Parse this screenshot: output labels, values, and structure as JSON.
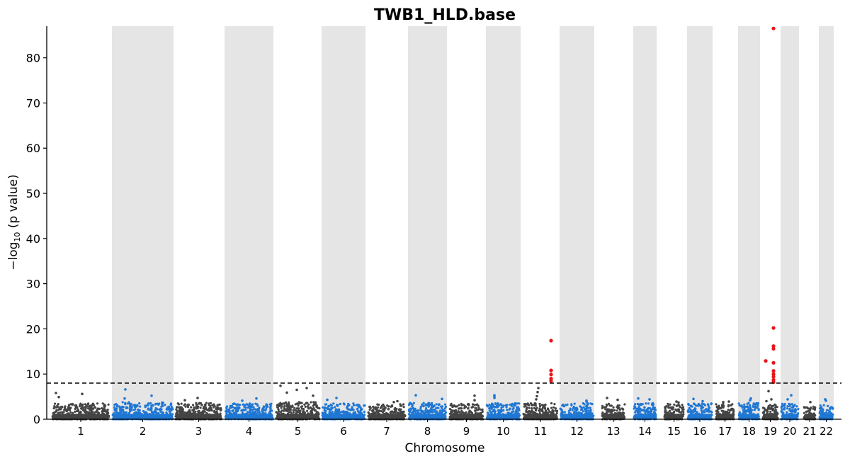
{
  "chart_data": {
    "type": "scatter",
    "title": "TWB1_HLD.base",
    "xlabel": "Chromosome",
    "ylabel": "−log10 (p value)",
    "ylabel_parts": {
      "prefix": "−log",
      "subscript": "10",
      "suffix": " (p value)"
    },
    "ylim": [
      0,
      87
    ],
    "yticks": [
      0,
      10,
      20,
      30,
      40,
      50,
      60,
      70,
      80
    ],
    "threshold": 8,
    "threshold_style": "dashed",
    "grid": false,
    "legend": "none",
    "colors": {
      "odd_chromosome": "#444444",
      "even_chromosome": "#1f77d4",
      "significant": "#e8141a",
      "shading": "#e5e5e5",
      "threshold_line": "#000000"
    },
    "chromosomes": [
      {
        "label": "1",
        "span": [
          73,
          155
        ],
        "shaded": false,
        "color_group": "dark",
        "base_max": 3.5,
        "peak_values": [
          5.8,
          5.6,
          4.9
        ]
      },
      {
        "label": "2",
        "span": [
          158,
          245
        ],
        "shaded": true,
        "color_group": "blue",
        "base_max": 3.8,
        "peak_values": [
          6.6,
          5.2,
          4.6
        ]
      },
      {
        "label": "3",
        "span": [
          247,
          314
        ],
        "shaded": false,
        "color_group": "dark",
        "base_max": 3.6,
        "peak_values": [
          4.7,
          4.2
        ]
      },
      {
        "label": "4",
        "span": [
          317,
          386
        ],
        "shaded": true,
        "color_group": "blue",
        "base_max": 3.5,
        "peak_values": [
          4.6,
          4.1
        ]
      },
      {
        "label": "5",
        "span": [
          389,
          452
        ],
        "shaded": false,
        "color_group": "dark",
        "base_max": 3.8,
        "peak_values": [
          7.4,
          6.9,
          6.5,
          5.9,
          5.2
        ]
      },
      {
        "label": "6",
        "span": [
          454,
          516
        ],
        "shaded": true,
        "color_group": "blue",
        "base_max": 3.5,
        "peak_values": [
          4.7,
          4.3
        ]
      },
      {
        "label": "7",
        "span": [
          519,
          573
        ],
        "shaded": false,
        "color_group": "dark",
        "base_max": 3.4,
        "peak_values": [
          4.0,
          3.8
        ]
      },
      {
        "label": "8",
        "span": [
          576,
          631
        ],
        "shaded": true,
        "color_group": "blue",
        "base_max": 3.6,
        "peak_values": [
          5.3,
          4.5
        ]
      },
      {
        "label": "9",
        "span": [
          634,
          683
        ],
        "shaded": false,
        "color_group": "dark",
        "base_max": 3.4,
        "peak_values": [
          5.2,
          4.2
        ]
      },
      {
        "label": "10",
        "span": [
          686,
          735
        ],
        "shaded": true,
        "color_group": "blue",
        "base_max": 3.6,
        "peak_values": [
          5.3,
          5.0,
          4.7
        ]
      },
      {
        "label": "11",
        "span": [
          738,
          788
        ],
        "shaded": false,
        "color_group": "dark",
        "base_max": 3.6,
        "peak_values": [
          6.9,
          6.0,
          5.1,
          4.4
        ],
        "significant": [
          {
            "x": 778,
            "y": 17.4
          },
          {
            "x": 778,
            "y": 10.8
          },
          {
            "x": 778,
            "y": 9.9
          },
          {
            "x": 778,
            "y": 9.0
          },
          {
            "x": 778,
            "y": 8.5
          }
        ]
      },
      {
        "label": "12",
        "span": [
          790,
          839
        ],
        "shaded": true,
        "color_group": "blue",
        "base_max": 3.6,
        "peak_values": [
          4.1,
          3.9
        ]
      },
      {
        "label": "13",
        "span": [
          849,
          883
        ],
        "shaded": false,
        "color_group": "dark",
        "base_max": 3.4,
        "peak_values": [
          4.7,
          4.3
        ]
      },
      {
        "label": "14",
        "span": [
          894,
          927
        ],
        "shaded": true,
        "color_group": "blue",
        "base_max": 3.6,
        "peak_values": [
          4.6,
          4.4
        ]
      },
      {
        "label": "15",
        "span": [
          937,
          966
        ],
        "shaded": false,
        "color_group": "dark",
        "base_max": 3.4,
        "peak_values": [
          3.9,
          3.7
        ]
      },
      {
        "label": "16",
        "span": [
          970,
          1006
        ],
        "shaded": true,
        "color_group": "blue",
        "base_max": 3.5,
        "peak_values": [
          4.5,
          4.0
        ]
      },
      {
        "label": "17",
        "span": [
          1010,
          1037
        ],
        "shaded": false,
        "color_group": "dark",
        "base_max": 3.5,
        "peak_values": [
          3.9,
          3.8
        ]
      },
      {
        "label": "18",
        "span": [
          1042,
          1073
        ],
        "shaded": true,
        "color_group": "blue",
        "base_max": 3.6,
        "peak_values": [
          4.6,
          4.2
        ]
      },
      {
        "label": "19",
        "span": [
          1076,
          1099
        ],
        "shaded": false,
        "color_group": "dark",
        "base_max": 3.3,
        "peak_values": [
          6.2,
          4.4,
          4.0
        ],
        "significant": [
          {
            "x": 1092,
            "y": 86.5
          },
          {
            "x": 1092,
            "y": 20.2
          },
          {
            "x": 1092,
            "y": 16.2
          },
          {
            "x": 1092,
            "y": 15.6
          },
          {
            "x": 1081,
            "y": 12.9
          },
          {
            "x": 1092,
            "y": 12.5
          },
          {
            "x": 1092,
            "y": 10.7
          },
          {
            "x": 1092,
            "y": 10.0
          },
          {
            "x": 1092,
            "y": 9.4
          },
          {
            "x": 1092,
            "y": 8.7
          },
          {
            "x": 1092,
            "y": 8.2
          }
        ]
      },
      {
        "label": "20",
        "span": [
          1102,
          1128
        ],
        "shaded": true,
        "color_group": "blue",
        "base_max": 3.5,
        "peak_values": [
          5.3,
          4.4
        ]
      },
      {
        "label": "21",
        "span": [
          1134,
          1152
        ],
        "shaded": false,
        "color_group": "dark",
        "base_max": 3.2,
        "peak_values": [
          3.8
        ]
      },
      {
        "label": "22",
        "span": [
          1156,
          1177
        ],
        "shaded": true,
        "color_group": "blue",
        "base_max": 3.4,
        "peak_values": [
          4.4,
          4.1
        ]
      }
    ]
  }
}
